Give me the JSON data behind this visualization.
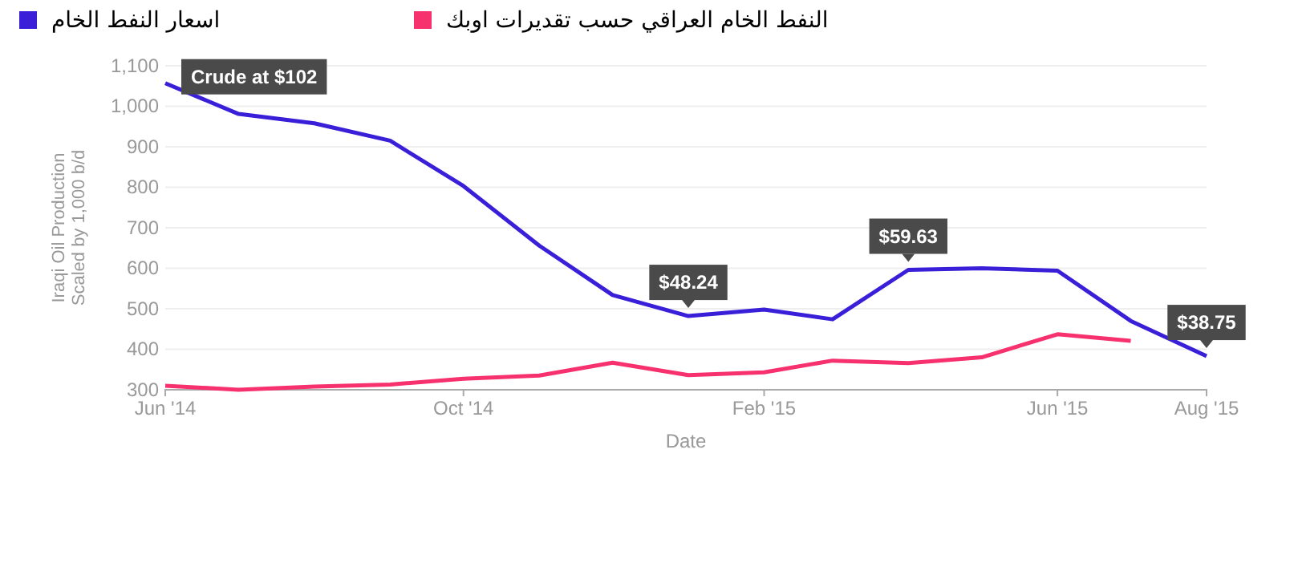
{
  "chart_data": {
    "type": "line",
    "xlabel": "Date",
    "ylabel": "Iraqi Oil Production\nScaled by 1,000 b/d",
    "x": [
      "2014-06",
      "2014-07",
      "2014-08",
      "2014-09",
      "2014-10",
      "2014-11",
      "2014-12",
      "2015-01",
      "2015-02",
      "2015-03",
      "2015-04",
      "2015-05",
      "2015-06",
      "2015-07",
      "2015-08"
    ],
    "series": [
      {
        "name": "اسعار النفط الخام",
        "color": "#3a1fd9",
        "values": [
          1057,
          981,
          958,
          915,
          803,
          656,
          534,
          482,
          498,
          474,
          596,
          600,
          594,
          470,
          383
        ]
      },
      {
        "name": "النفط الخام العراقي حسب تقديرات اوبك",
        "color": "#f7306e",
        "values": [
          310,
          300,
          308,
          313,
          327,
          335,
          367,
          336,
          343,
          372,
          366,
          380,
          437,
          421,
          null
        ]
      }
    ],
    "xlim": [
      "2014-06",
      "2015-08"
    ],
    "xticks": [
      {
        "value": "2014-06",
        "label": "Jun '14"
      },
      {
        "value": "2014-10",
        "label": "Oct '14"
      },
      {
        "value": "2015-02",
        "label": "Feb '15"
      },
      {
        "value": "2015-06",
        "label": "Jun '15"
      },
      {
        "value": "2015-08",
        "label": "Aug '15"
      }
    ],
    "ylim": [
      300,
      1100
    ],
    "yticks": [
      300,
      400,
      500,
      600,
      700,
      800,
      900,
      {
        "value": 1000,
        "label": "1,000"
      },
      {
        "value": 1100,
        "label": "1,100"
      }
    ],
    "annotations": [
      {
        "text": "Crude at $102",
        "x": "2014-06",
        "y": 1057
      },
      {
        "text": "$48.24",
        "x": "2015-01",
        "y": 482
      },
      {
        "text": "$59.63",
        "x": "2015-04",
        "y": 596
      },
      {
        "text": "$38.75",
        "x": "2015-08",
        "y": 383
      }
    ],
    "grid": "y",
    "legend": "top",
    "marker": "none",
    "line_style": "solid"
  }
}
